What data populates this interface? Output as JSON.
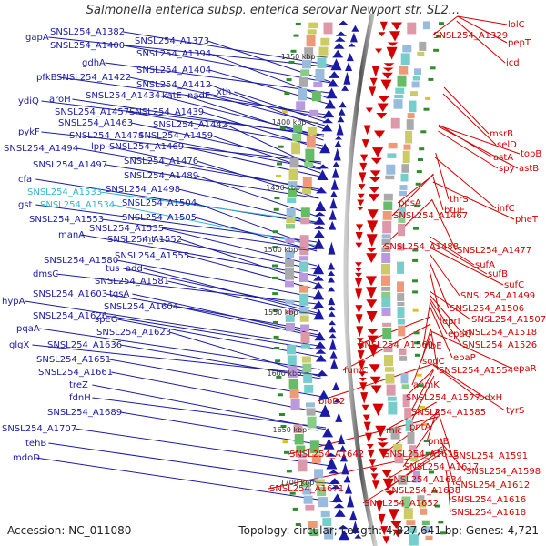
{
  "title": "Salmonella enterica subsp. enterica serovar Newport str. SL2...",
  "accession": "Accession: NC_011080",
  "topology": "Topology: circular; Length: 4,827,641 bp; Genes: 4,721",
  "ticks": [
    "1350 kbp",
    "1400 kbp",
    "1450 kbp",
    "1500 kbp",
    "1550 kbp",
    "1600 kbp",
    "1650 kbp",
    "1700 kbp"
  ],
  "left_labels": [
    {
      "text": "gapA",
      "cyan": false
    },
    {
      "text": "SNSL254_A1382",
      "cyan": false
    },
    {
      "text": "SNSL254_A1400",
      "cyan": false
    },
    {
      "text": "SNSL254_A1373",
      "cyan": false
    },
    {
      "text": "SNSL254_A1394",
      "cyan": false
    },
    {
      "text": "gdhA",
      "cyan": false
    },
    {
      "text": "SNSL254_A1404",
      "cyan": false
    },
    {
      "text": "pfkB",
      "cyan": false
    },
    {
      "text": "SNSL254_A1422",
      "cyan": false
    },
    {
      "text": "SNSL254_A1412",
      "cyan": false
    },
    {
      "text": "xth",
      "cyan": false
    },
    {
      "text": "ydiQ",
      "cyan": false
    },
    {
      "text": "aroH",
      "cyan": false
    },
    {
      "text": "SNSL254_A1434",
      "cyan": false
    },
    {
      "text": "katE",
      "cyan": false
    },
    {
      "text": "nadE",
      "cyan": false
    },
    {
      "text": "SNSL254_A1457",
      "cyan": false
    },
    {
      "text": "SNSL254_A1439",
      "cyan": false
    },
    {
      "text": "SNSL254_A1463",
      "cyan": false
    },
    {
      "text": "SNSL254_A1442",
      "cyan": false
    },
    {
      "text": "pykF",
      "cyan": false
    },
    {
      "text": "SNSL254_A1474",
      "cyan": false
    },
    {
      "text": "SNSL254_A1459",
      "cyan": false
    },
    {
      "text": "SNSL254_A1494",
      "cyan": false
    },
    {
      "text": "lpp",
      "cyan": false
    },
    {
      "text": "SNSL254_A1469",
      "cyan": false
    },
    {
      "text": "SNSL254_A1497",
      "cyan": false
    },
    {
      "text": "SNSL254_A1476",
      "cyan": false
    },
    {
      "text": "SNSL254_A1489",
      "cyan": false
    },
    {
      "text": "cfa",
      "cyan": false
    },
    {
      "text": "SNSL254_A1533",
      "cyan": true
    },
    {
      "text": "SNSL254_A1498",
      "cyan": false
    },
    {
      "text": "gst",
      "cyan": false
    },
    {
      "text": "SNSL254_A1534",
      "cyan": true
    },
    {
      "text": "SNSL254_A1504",
      "cyan": false
    },
    {
      "text": "SNSL254_A1553",
      "cyan": false
    },
    {
      "text": "SNSL254_A1505",
      "cyan": false
    },
    {
      "text": "SNSL254_A1535",
      "cyan": false
    },
    {
      "text": "manA",
      "cyan": false
    },
    {
      "text": "SNSL254_A1552",
      "cyan": false
    },
    {
      "text": "rnt",
      "cyan": false
    },
    {
      "text": "SNSL254_A1555",
      "cyan": false
    },
    {
      "text": "SNSL254_A1580",
      "cyan": false
    },
    {
      "text": "tus",
      "cyan": false
    },
    {
      "text": "add",
      "cyan": false
    },
    {
      "text": "dmsC",
      "cyan": false
    },
    {
      "text": "SNSL254_A1581",
      "cyan": false
    },
    {
      "text": "SNSL254_A1603",
      "cyan": false
    },
    {
      "text": "tqsA",
      "cyan": false
    },
    {
      "text": "hypA",
      "cyan": false
    },
    {
      "text": "SNSL254_A1604",
      "cyan": false
    },
    {
      "text": "SNSL254_A1626",
      "cyan": false
    },
    {
      "text": "speG",
      "cyan": false
    },
    {
      "text": "pqaA",
      "cyan": false
    },
    {
      "text": "SNSL254_A1623",
      "cyan": false
    },
    {
      "text": "glgX",
      "cyan": false
    },
    {
      "text": "SNSL254_A1636",
      "cyan": false
    },
    {
      "text": "SNSL254_A1651",
      "cyan": false
    },
    {
      "text": "SNSL254_A1661",
      "cyan": false
    },
    {
      "text": "treZ",
      "cyan": false
    },
    {
      "text": "fdnH",
      "cyan": false
    },
    {
      "text": "SNSL254_A1689",
      "cyan": false
    },
    {
      "text": "SNSL254_A1707",
      "cyan": false
    },
    {
      "text": "tehB",
      "cyan": false
    },
    {
      "text": "mdoD",
      "cyan": false
    }
  ],
  "right_labels": [
    "lolC",
    "SNSL254_A1329",
    "pepT",
    "icd",
    "msrB",
    "selD",
    "topB",
    "astA",
    "spy",
    "astB",
    "thrS",
    "infC",
    "ppsA",
    "btuE",
    "pheT",
    "SNSL254_A1467",
    "SNSL254_A1488",
    "SNSL254_A1477",
    "sufA",
    "sufB",
    "sufC",
    "SNSL254_A1499",
    "SNSL254_A1506",
    "eprI",
    "SNSL254_A1507",
    "epaQ",
    "SNSL254_A1518",
    "ribE",
    "SNSL254_A1526",
    "epaP",
    "SNSL254_A1560",
    "sodC",
    "epaR",
    "SNSL254_A1554",
    "fumC",
    "anmK",
    "SNSL254_A1577",
    "pdxH",
    "bioD2",
    "SNSL254_A1585",
    "tyrS",
    "pntA",
    "mic",
    "pntB",
    "SNSL254_A1642",
    "SNSL254_A1615",
    "SNSL254_A1591",
    "SNSL254_A1617",
    "SNSL254_A1598",
    "SNSL254_A1634",
    "SNSL254_A1671",
    "SNSL254_A1638",
    "SNSL254_A1612",
    "SNSL254_A1652",
    "SNSL254_A1616",
    "SNSL254_A1618"
  ],
  "colors": {
    "forward": "#1a1aa6",
    "reverse": "#d40000",
    "cyan": "#33b5cc",
    "backbone": "#777777"
  }
}
